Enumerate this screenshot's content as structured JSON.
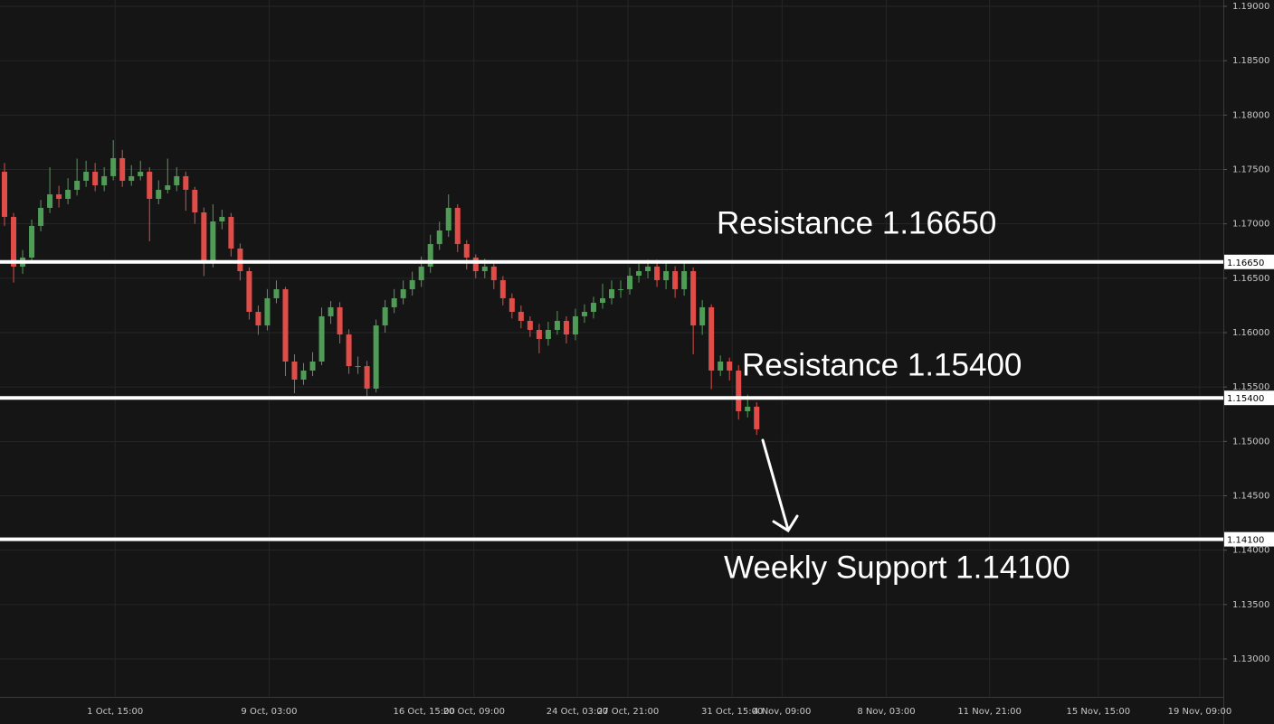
{
  "chart_data": {
    "type": "candlestick",
    "up_color": "#4f9c57",
    "down_color": "#e04c47",
    "grid": true,
    "ylim": [
      1.12651,
      1.19058
    ],
    "yticks": [
      {
        "value": 1.13,
        "label": "1.13000"
      },
      {
        "value": 1.135,
        "label": "1.13500"
      },
      {
        "value": 1.14,
        "label": "1.14000"
      },
      {
        "value": 1.145,
        "label": "1.14500"
      },
      {
        "value": 1.15,
        "label": "1.15000"
      },
      {
        "value": 1.155,
        "label": "1.15500"
      },
      {
        "value": 1.16,
        "label": "1.16000"
      },
      {
        "value": 1.165,
        "label": "1.16500"
      },
      {
        "value": 1.17,
        "label": "1.17000"
      },
      {
        "value": 1.175,
        "label": "1.17500"
      },
      {
        "value": 1.18,
        "label": "1.18000"
      },
      {
        "value": 1.185,
        "label": "1.18500"
      },
      {
        "value": 1.19,
        "label": "1.19000"
      }
    ],
    "xlim": [
      0,
      135
    ],
    "xticks": [
      {
        "value": 12.7,
        "label": "1 Oct, 15:00"
      },
      {
        "value": 29.7,
        "label": "9 Oct, 03:00"
      },
      {
        "value": 46.8,
        "label": "16 Oct, 15:00"
      },
      {
        "value": 52.3,
        "label": "20 Oct, 09:00"
      },
      {
        "value": 63.7,
        "label": "24 Oct, 03:00"
      },
      {
        "value": 69.3,
        "label": "27 Oct, 21:00"
      },
      {
        "value": 80.8,
        "label": "31 Oct, 15:00"
      },
      {
        "value": 86.3,
        "label": "4 Nov, 09:00"
      },
      {
        "value": 97.8,
        "label": "8 Nov, 03:00"
      },
      {
        "value": 109.2,
        "label": "11 Nov, 21:00"
      },
      {
        "value": 121.2,
        "label": "15 Nov, 15:00"
      },
      {
        "value": 132.4,
        "label": "19 Nov, 09:00"
      }
    ],
    "open": [
      1.17479,
      1.17064,
      1.16607,
      1.1669,
      1.16981,
      1.17147,
      1.17271,
      1.1723,
      1.17313,
      1.17396,
      1.17479,
      1.17354,
      1.17438,
      1.17604,
      1.17396,
      1.17438,
      1.17479,
      1.1723,
      1.17313,
      1.17354,
      1.17438,
      1.17313,
      1.17105,
      1.16648,
      1.17022,
      1.17064,
      1.16773,
      1.16565,
      1.16191,
      1.16066,
      1.16316,
      1.16399,
      1.15734,
      1.15568,
      1.15651,
      1.15734,
      1.1615,
      1.16233,
      1.15983,
      1.15692,
      1.15692,
      1.15485,
      1.16066,
      1.16233,
      1.16316,
      1.16399,
      1.16482,
      1.16607,
      1.16814,
      1.16939,
      1.17147,
      1.16814,
      1.1669,
      1.16565,
      1.16607,
      1.16482,
      1.16316,
      1.16191,
      1.16108,
      1.16025,
      1.15942,
      1.16025,
      1.16108,
      1.15983,
      1.1615,
      1.16191,
      1.16274,
      1.16316,
      1.16399,
      1.16399,
      1.16523,
      1.16565,
      1.16607,
      1.16482,
      1.16565,
      1.16399,
      1.16565,
      1.16066,
      1.16233,
      1.15651,
      1.15734,
      1.15651,
      1.15277,
      1.15319
    ],
    "high": [
      1.1756,
      1.171,
      1.1676,
      1.1704,
      1.1722,
      1.1752,
      1.1735,
      1.1742,
      1.176,
      1.1758,
      1.1756,
      1.1752,
      1.1777,
      1.1768,
      1.1754,
      1.1758,
      1.1752,
      1.174,
      1.176,
      1.1752,
      1.1748,
      1.1734,
      1.1715,
      1.1718,
      1.1713,
      1.171,
      1.1682,
      1.166,
      1.1625,
      1.164,
      1.1648,
      1.1642,
      1.158,
      1.1572,
      1.1582,
      1.1623,
      1.1629,
      1.1628,
      1.1603,
      1.1578,
      1.1574,
      1.1612,
      1.163,
      1.164,
      1.1648,
      1.1656,
      1.167,
      1.169,
      1.1702,
      1.17271,
      1.1718,
      1.1685,
      1.1672,
      1.1668,
      1.1664,
      1.1652,
      1.1636,
      1.1625,
      1.1615,
      1.1608,
      1.161,
      1.162,
      1.1615,
      1.1622,
      1.1626,
      1.1633,
      1.1645,
      1.1648,
      1.1648,
      1.166,
      1.1666,
      1.1667,
      1.1667,
      1.1664,
      1.1661,
      1.1665,
      1.166,
      1.163,
      1.1626,
      1.1579,
      1.1577,
      1.157,
      1.1543,
      1.1536
    ],
    "low": [
      1.1698,
      1.1646,
      1.1654,
      1.1664,
      1.1693,
      1.171,
      1.1715,
      1.1718,
      1.1726,
      1.1734,
      1.173,
      1.173,
      1.174,
      1.1734,
      1.1735,
      1.174,
      1.1684,
      1.1718,
      1.1728,
      1.173,
      1.1712,
      1.17,
      1.1652,
      1.166,
      1.1695,
      1.167,
      1.1648,
      1.1612,
      1.1598,
      1.1602,
      1.1627,
      1.156,
      1.15443,
      1.1552,
      1.156,
      1.157,
      1.1608,
      1.159,
      1.1562,
      1.1562,
      1.15418,
      1.1545,
      1.16,
      1.1618,
      1.1626,
      1.1634,
      1.1642,
      1.1655,
      1.1676,
      1.1688,
      1.1674,
      1.1658,
      1.165,
      1.165,
      1.164,
      1.1625,
      1.1613,
      1.1604,
      1.1596,
      1.1581,
      1.1588,
      1.1598,
      1.159,
      1.1593,
      1.1609,
      1.1613,
      1.1622,
      1.1626,
      1.1632,
      1.1635,
      1.1646,
      1.165,
      1.1642,
      1.164,
      1.1632,
      1.1634,
      1.158,
      1.1598,
      1.1548,
      1.156,
      1.1556,
      1.152,
      1.1522,
      1.1506
    ],
    "close": [
      1.17064,
      1.16607,
      1.1669,
      1.16981,
      1.17147,
      1.17271,
      1.1723,
      1.17313,
      1.17396,
      1.17479,
      1.17354,
      1.17438,
      1.17604,
      1.17396,
      1.17438,
      1.17479,
      1.1723,
      1.17313,
      1.17354,
      1.17438,
      1.17313,
      1.17105,
      1.16648,
      1.17022,
      1.17064,
      1.16773,
      1.16565,
      1.16191,
      1.16066,
      1.16316,
      1.16399,
      1.15734,
      1.15568,
      1.15651,
      1.15734,
      1.1615,
      1.16233,
      1.15983,
      1.15692,
      1.15692,
      1.15485,
      1.16066,
      1.16233,
      1.16316,
      1.16399,
      1.16482,
      1.16607,
      1.16814,
      1.16939,
      1.17147,
      1.16814,
      1.1669,
      1.16565,
      1.16607,
      1.16482,
      1.16316,
      1.16191,
      1.16108,
      1.16025,
      1.15942,
      1.16025,
      1.16108,
      1.15983,
      1.1615,
      1.16191,
      1.16274,
      1.16316,
      1.16399,
      1.16399,
      1.16523,
      1.16565,
      1.16607,
      1.16482,
      1.16565,
      1.16399,
      1.16565,
      1.16066,
      1.16233,
      1.15651,
      1.15734,
      1.15651,
      1.15277,
      1.15319,
      1.15111
    ],
    "levels": [
      {
        "value": 1.1665,
        "label": "1.16650",
        "annotation": "Resistance 1.16650"
      },
      {
        "value": 1.154,
        "label": "1.15400",
        "annotation": "Resistance 1.15400"
      },
      {
        "value": 1.141,
        "label": "1.14100",
        "annotation": "Weekly Support 1.14100"
      }
    ],
    "level_color": "#ffffff"
  }
}
